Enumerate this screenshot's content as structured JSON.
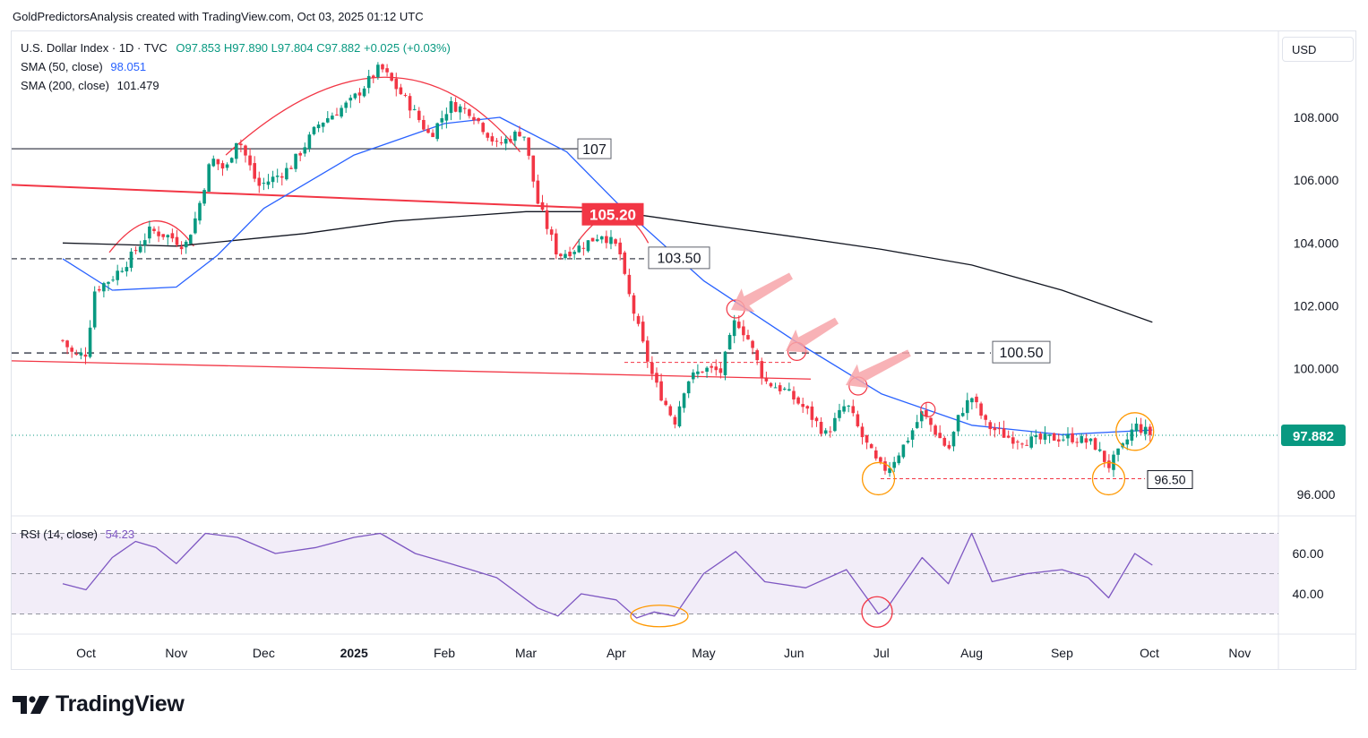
{
  "attribution": "GoldPredictorsAnalysis created with TradingView.com, Oct 03, 2025 01:12 UTC",
  "legend": {
    "symbol": "U.S. Dollar Index · 1D · TVC",
    "ohlc": "O97.853  H97.890  L97.804  C97.882  +0.025 (+0.03%)",
    "sma50_label": "SMA (50, close)",
    "sma50_value": "98.051",
    "sma200_label": "SMA (200, close)",
    "sma200_value": "101.479",
    "rsi_label": "RSI (14, close)",
    "rsi_value": "54.23"
  },
  "currency_button": "USD",
  "logo_text": "TradingView",
  "colors": {
    "up": "#089981",
    "down": "#f23645",
    "sma50": "#2962ff",
    "sma200": "#131722",
    "rsi": "#7e57c2",
    "rsi_band": "#ede7f6",
    "arc": "#f23645",
    "orange_circle": "#ff9800",
    "arrow": "#f7a4a9"
  },
  "chart_data": [
    {
      "type": "candlestick",
      "title": "U.S. Dollar Index · 1D · TVC",
      "x_ticks": [
        "Oct",
        "Nov",
        "Dec",
        "2025",
        "Feb",
        "Mar",
        "Apr",
        "May",
        "Jun",
        "Jul",
        "Aug",
        "Sep",
        "Oct",
        "Nov"
      ],
      "x_tick_dates": [
        "2024-10-01",
        "2024-11-01",
        "2024-12-01",
        "2025-01-01",
        "2025-02-01",
        "2025-03-01",
        "2025-04-01",
        "2025-05-01",
        "2025-06-01",
        "2025-07-01",
        "2025-08-01",
        "2025-09-01",
        "2025-10-01",
        "2025-11-01"
      ],
      "y_ticks": [
        "108.000",
        "106.000",
        "104.000",
        "102.000",
        "100.000",
        "96.000"
      ],
      "ylim": [
        95.45,
        110.7
      ],
      "last_price": "97.882",
      "last_price_value": 97.882,
      "key_levels": [
        {
          "label": "107",
          "value": 107.0
        },
        {
          "label": "105.20",
          "value": 105.2
        },
        {
          "label": "103.50",
          "value": 103.5
        },
        {
          "label": "100.50",
          "value": 100.5
        },
        {
          "label": "96.50",
          "value": 96.5
        }
      ],
      "price_path": [
        [
          "2024-09-23",
          100.9
        ],
        [
          "2024-09-27",
          100.4
        ],
        [
          "2024-10-01",
          100.5
        ],
        [
          "2024-10-04",
          102.5
        ],
        [
          "2024-10-10",
          102.9
        ],
        [
          "2024-10-16",
          103.5
        ],
        [
          "2024-10-23",
          104.4
        ],
        [
          "2024-10-30",
          104.2
        ],
        [
          "2024-11-04",
          103.9
        ],
        [
          "2024-11-08",
          104.9
        ],
        [
          "2024-11-13",
          106.7
        ],
        [
          "2024-11-18",
          106.3
        ],
        [
          "2024-11-22",
          107.4
        ],
        [
          "2024-11-29",
          105.8
        ],
        [
          "2024-12-05",
          106.1
        ],
        [
          "2024-12-10",
          106.4
        ],
        [
          "2024-12-20",
          107.8
        ],
        [
          "2024-12-31",
          108.5
        ],
        [
          "2025-01-10",
          109.6
        ],
        [
          "2025-01-20",
          108.4
        ],
        [
          "2025-01-27",
          107.4
        ],
        [
          "2025-02-03",
          108.4
        ],
        [
          "2025-02-10",
          108.2
        ],
        [
          "2025-02-19",
          107.1
        ],
        [
          "2025-02-28",
          107.6
        ],
        [
          "2025-03-05",
          105.3
        ],
        [
          "2025-03-12",
          103.6
        ],
        [
          "2025-03-20",
          103.9
        ],
        [
          "2025-03-27",
          104.3
        ],
        [
          "2025-04-02",
          103.8
        ],
        [
          "2025-04-04",
          102.8
        ],
        [
          "2025-04-10",
          100.8
        ],
        [
          "2025-04-14",
          99.6
        ],
        [
          "2025-04-21",
          98.3
        ],
        [
          "2025-04-25",
          99.6
        ],
        [
          "2025-05-01",
          100.0
        ],
        [
          "2025-05-07",
          99.9
        ],
        [
          "2025-05-12",
          101.6
        ],
        [
          "2025-05-16",
          101.0
        ],
        [
          "2025-05-22",
          99.6
        ],
        [
          "2025-05-29",
          99.3
        ],
        [
          "2025-06-05",
          98.7
        ],
        [
          "2025-06-12",
          97.9
        ],
        [
          "2025-06-19",
          98.9
        ],
        [
          "2025-06-24",
          97.9
        ],
        [
          "2025-06-30",
          96.9
        ],
        [
          "2025-07-03",
          96.8
        ],
        [
          "2025-07-09",
          97.6
        ],
        [
          "2025-07-15",
          98.6
        ],
        [
          "2025-07-24",
          97.4
        ],
        [
          "2025-07-28",
          98.6
        ],
        [
          "2025-08-01",
          99.1
        ],
        [
          "2025-08-06",
          98.2
        ],
        [
          "2025-08-14",
          97.8
        ],
        [
          "2025-08-22",
          97.7
        ],
        [
          "2025-08-29",
          97.8
        ],
        [
          "2025-09-05",
          97.8
        ],
        [
          "2025-09-12",
          97.6
        ],
        [
          "2025-09-17",
          96.9
        ],
        [
          "2025-09-22",
          97.5
        ],
        [
          "2025-09-26",
          98.2
        ],
        [
          "2025-10-02",
          97.882
        ]
      ],
      "sma50_path": [
        [
          "2024-09-23",
          103.5
        ],
        [
          "2024-10-10",
          102.5
        ],
        [
          "2024-11-01",
          102.6
        ],
        [
          "2024-11-15",
          103.6
        ],
        [
          "2024-12-01",
          105.1
        ],
        [
          "2025-01-01",
          106.8
        ],
        [
          "2025-02-01",
          107.8
        ],
        [
          "2025-02-20",
          108.0
        ],
        [
          "2025-03-15",
          106.9
        ],
        [
          "2025-04-01",
          105.3
        ],
        [
          "2025-05-01",
          102.8
        ],
        [
          "2025-06-01",
          100.9
        ],
        [
          "2025-07-01",
          99.2
        ],
        [
          "2025-08-01",
          98.2
        ],
        [
          "2025-09-01",
          97.9
        ],
        [
          "2025-10-02",
          98.05
        ]
      ],
      "sma200_path": [
        [
          "2024-09-23",
          104.0
        ],
        [
          "2024-11-01",
          103.9
        ],
        [
          "2024-12-15",
          104.3
        ],
        [
          "2025-01-15",
          104.7
        ],
        [
          "2025-03-01",
          105.0
        ],
        [
          "2025-04-01",
          105.0
        ],
        [
          "2025-05-01",
          104.6
        ],
        [
          "2025-06-01",
          104.2
        ],
        [
          "2025-07-01",
          103.8
        ],
        [
          "2025-08-01",
          103.3
        ],
        [
          "2025-09-01",
          102.5
        ],
        [
          "2025-10-02",
          101.48
        ]
      ]
    },
    {
      "type": "line",
      "title": "RSI (14, close)",
      "y_ticks": [
        "60.00",
        "40.00"
      ],
      "ylim": [
        20,
        75
      ],
      "band": [
        30,
        70
      ],
      "midline": 50,
      "rsi_path": [
        [
          "2024-09-23",
          45
        ],
        [
          "2024-10-01",
          42
        ],
        [
          "2024-10-10",
          58
        ],
        [
          "2024-10-18",
          66
        ],
        [
          "2024-10-25",
          63
        ],
        [
          "2024-11-01",
          55
        ],
        [
          "2024-11-11",
          70
        ],
        [
          "2024-11-22",
          68
        ],
        [
          "2024-12-05",
          60
        ],
        [
          "2024-12-19",
          63
        ],
        [
          "2025-01-01",
          68
        ],
        [
          "2025-01-10",
          70
        ],
        [
          "2025-01-22",
          60
        ],
        [
          "2025-02-03",
          55
        ],
        [
          "2025-02-10",
          52
        ],
        [
          "2025-02-19",
          48
        ],
        [
          "2025-03-05",
          33
        ],
        [
          "2025-03-12",
          29
        ],
        [
          "2025-03-20",
          40
        ],
        [
          "2025-04-01",
          37
        ],
        [
          "2025-04-08",
          28
        ],
        [
          "2025-04-14",
          31
        ],
        [
          "2025-04-21",
          29
        ],
        [
          "2025-05-01",
          50
        ],
        [
          "2025-05-12",
          61
        ],
        [
          "2025-05-22",
          46
        ],
        [
          "2025-06-05",
          43
        ],
        [
          "2025-06-19",
          52
        ],
        [
          "2025-06-30",
          30
        ],
        [
          "2025-07-03",
          33
        ],
        [
          "2025-07-15",
          58
        ],
        [
          "2025-07-24",
          45
        ],
        [
          "2025-08-01",
          70
        ],
        [
          "2025-08-08",
          46
        ],
        [
          "2025-08-20",
          50
        ],
        [
          "2025-09-01",
          52
        ],
        [
          "2025-09-10",
          48
        ],
        [
          "2025-09-17",
          38
        ],
        [
          "2025-09-26",
          60
        ],
        [
          "2025-10-02",
          54.23
        ]
      ]
    }
  ]
}
